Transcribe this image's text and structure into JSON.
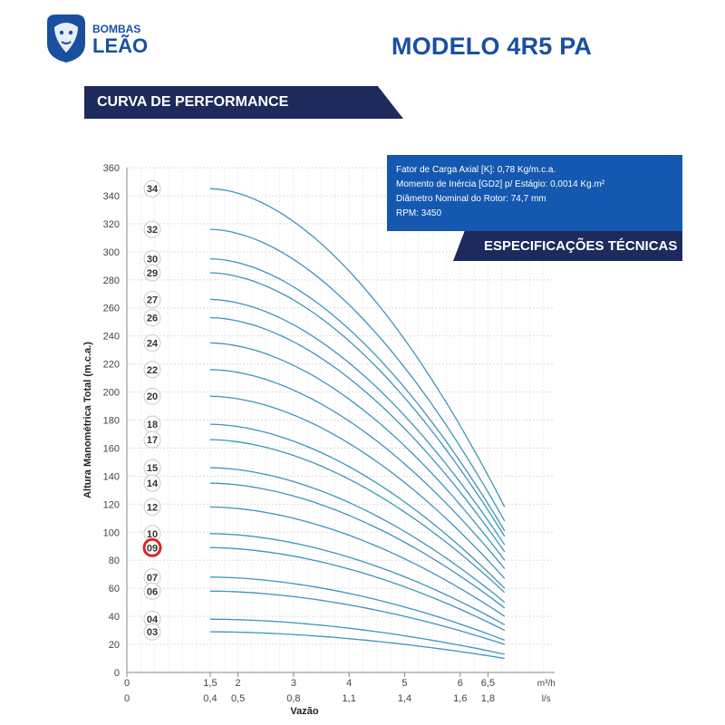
{
  "header": {
    "brand_line1": "BOMBAS",
    "brand_line2": "LEÃO",
    "model_title": "MODELO 4R5 PA",
    "section_title": "CURVA DE PERFORMANCE"
  },
  "specs": {
    "lines": [
      "Fator de Carga Axial [K]: 0,78 Kg/m.c.a.",
      "Momento de Inércia [GD2] p/ Estágio: 0,0014 Kg.m²",
      "Diâmetro Nominal do Rotor: 74,7 mm",
      "RPM: 3450"
    ],
    "tab_label": "ESPECIFICAÇÕES TÉCNICAS"
  },
  "colors": {
    "brand_blue": "#1a4fa0",
    "navy": "#1e2a5c",
    "spec_blue": "#1558b0",
    "curve": "#3e95b8",
    "highlight": "#d6262b"
  },
  "chart_data": {
    "type": "line",
    "ylabel": "Altura Manométrica Total (m.c.a.)",
    "xlabel": "Vazão",
    "ylim": [
      0,
      360
    ],
    "yticks": [
      0,
      20,
      40,
      60,
      80,
      100,
      120,
      140,
      160,
      180,
      200,
      220,
      240,
      260,
      280,
      300,
      320,
      340,
      360
    ],
    "x_axis_m3h": {
      "unit": "m³/h",
      "ticks": [
        {
          "value": 0,
          "label": "0"
        },
        {
          "value": 1.5,
          "label": "1,5"
        },
        {
          "value": 2,
          "label": "2"
        },
        {
          "value": 3,
          "label": "3"
        },
        {
          "value": 4,
          "label": "4"
        },
        {
          "value": 5,
          "label": "5"
        },
        {
          "value": 6,
          "label": "6"
        },
        {
          "value": 6.5,
          "label": "6,5"
        }
      ]
    },
    "x_axis_ls": {
      "unit": "l/s",
      "labels": [
        "0",
        "0,4",
        "0,5",
        "0,8",
        "1,1",
        "1,4",
        "1,6",
        "1,8"
      ]
    },
    "flow_range": [
      1.5,
      6.8
    ],
    "highlighted_stage": "09",
    "series": [
      {
        "name": "34",
        "values": [
          345,
          118
        ]
      },
      {
        "name": "32",
        "values": [
          316,
          108
        ]
      },
      {
        "name": "30",
        "values": [
          295,
          101
        ]
      },
      {
        "name": "29",
        "values": [
          285,
          97
        ]
      },
      {
        "name": "27",
        "values": [
          266,
          91
        ]
      },
      {
        "name": "26",
        "values": [
          253,
          86
        ]
      },
      {
        "name": "24",
        "values": [
          235,
          80
        ]
      },
      {
        "name": "22",
        "values": [
          216,
          74
        ]
      },
      {
        "name": "20",
        "values": [
          197,
          67
        ]
      },
      {
        "name": "18",
        "values": [
          177,
          60
        ]
      },
      {
        "name": "17",
        "values": [
          166,
          57
        ]
      },
      {
        "name": "15",
        "values": [
          146,
          50
        ]
      },
      {
        "name": "14",
        "values": [
          135,
          46
        ]
      },
      {
        "name": "12",
        "values": [
          118,
          40
        ]
      },
      {
        "name": "10",
        "values": [
          99,
          34
        ]
      },
      {
        "name": "09",
        "values": [
          89,
          30
        ]
      },
      {
        "name": "07",
        "values": [
          68,
          23
        ]
      },
      {
        "name": "06",
        "values": [
          58,
          20
        ]
      },
      {
        "name": "04",
        "values": [
          38,
          13
        ]
      },
      {
        "name": "03",
        "values": [
          29,
          10
        ]
      }
    ]
  }
}
